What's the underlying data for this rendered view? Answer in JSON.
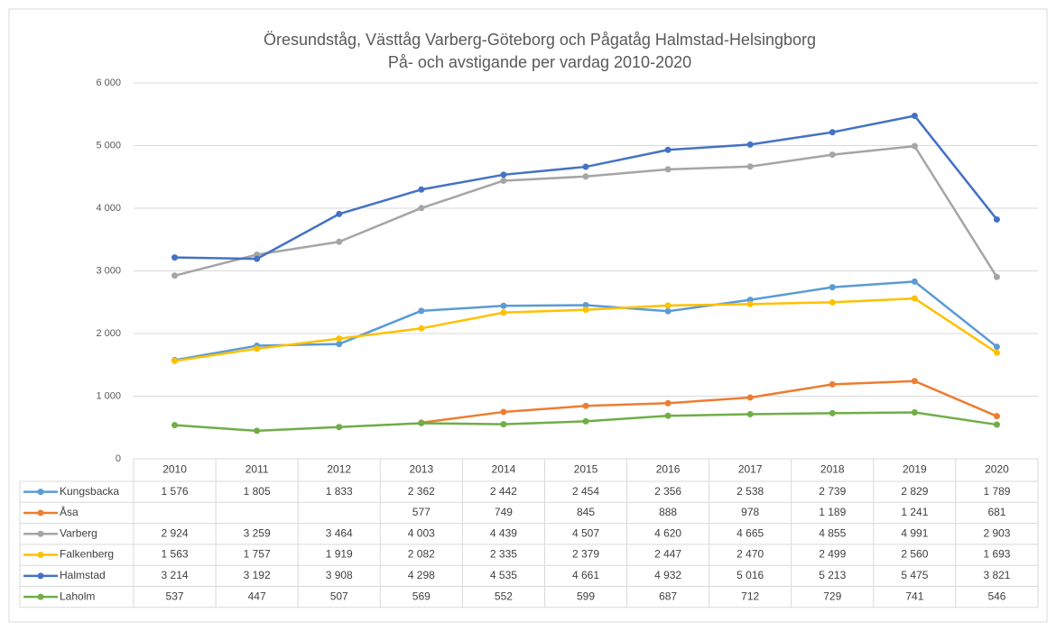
{
  "chart_data": {
    "type": "line",
    "title": "Öresundståg, Västtåg Varberg-Göteborg och Pågatåg Halmstad-Helsingborg",
    "subtitle": "På- och avstigande per vardag 2010-2020",
    "categories": [
      "2010",
      "2011",
      "2012",
      "2013",
      "2014",
      "2015",
      "2016",
      "2017",
      "2018",
      "2019",
      "2020"
    ],
    "ylim": [
      0,
      6000
    ],
    "yticks": [
      0,
      {
        "value": 1000,
        "label": "1 000"
      },
      {
        "value": 2000,
        "label": "2 000"
      },
      {
        "value": 3000,
        "label": "3 000"
      },
      {
        "value": 4000,
        "label": "4 000"
      },
      {
        "value": 5000,
        "label": "5 000"
      },
      {
        "value": 6000,
        "label": "6 000"
      }
    ],
    "grid": true,
    "series": [
      {
        "name": "Kungsbacka",
        "color": "#5b9bd5",
        "values": [
          1576,
          1805,
          1833,
          2362,
          2442,
          2454,
          2356,
          2538,
          2739,
          2829,
          1789
        ],
        "value_labels": [
          "1 576",
          "1 805",
          "1 833",
          "2 362",
          "2 442",
          "2 454",
          "2 356",
          "2 538",
          "2 739",
          "2 829",
          "1 789"
        ]
      },
      {
        "name": "Åsa",
        "color": "#ed7d31",
        "values": [
          null,
          null,
          null,
          577,
          749,
          845,
          888,
          978,
          1189,
          1241,
          681
        ],
        "value_labels": [
          null,
          null,
          null,
          "577",
          "749",
          "845",
          "888",
          "978",
          "1 189",
          "1 241",
          "681"
        ]
      },
      {
        "name": "Varberg",
        "color": "#a5a5a5",
        "values": [
          2924,
          3259,
          3464,
          4003,
          4439,
          4507,
          4620,
          4665,
          4855,
          4991,
          2903
        ],
        "value_labels": [
          "2 924",
          "3 259",
          "3 464",
          "4 003",
          "4 439",
          "4 507",
          "4 620",
          "4 665",
          "4 855",
          "4 991",
          "2 903"
        ]
      },
      {
        "name": "Falkenberg",
        "color": "#ffc000",
        "values": [
          1563,
          1757,
          1919,
          2082,
          2335,
          2379,
          2447,
          2470,
          2499,
          2560,
          1693
        ],
        "value_labels": [
          "1 563",
          "1 757",
          "1 919",
          "2 082",
          "2 335",
          "2 379",
          "2 447",
          "2 470",
          "2 499",
          "2 560",
          "1 693"
        ]
      },
      {
        "name": "Halmstad",
        "color": "#4472c4",
        "values": [
          3214,
          3192,
          3908,
          4298,
          4535,
          4661,
          4932,
          5016,
          5213,
          5475,
          3821
        ],
        "value_labels": [
          "3 214",
          "3 192",
          "3 908",
          "4 298",
          "4 535",
          "4 661",
          "4 932",
          "5 016",
          "5 213",
          "5 475",
          "3 821"
        ]
      },
      {
        "name": "Laholm",
        "color": "#70ad47",
        "values": [
          537,
          447,
          507,
          569,
          552,
          599,
          687,
          712,
          729,
          741,
          546
        ],
        "value_labels": [
          "537",
          "447",
          "507",
          "569",
          "552",
          "599",
          "687",
          "712",
          "729",
          "741",
          "546"
        ]
      }
    ]
  }
}
